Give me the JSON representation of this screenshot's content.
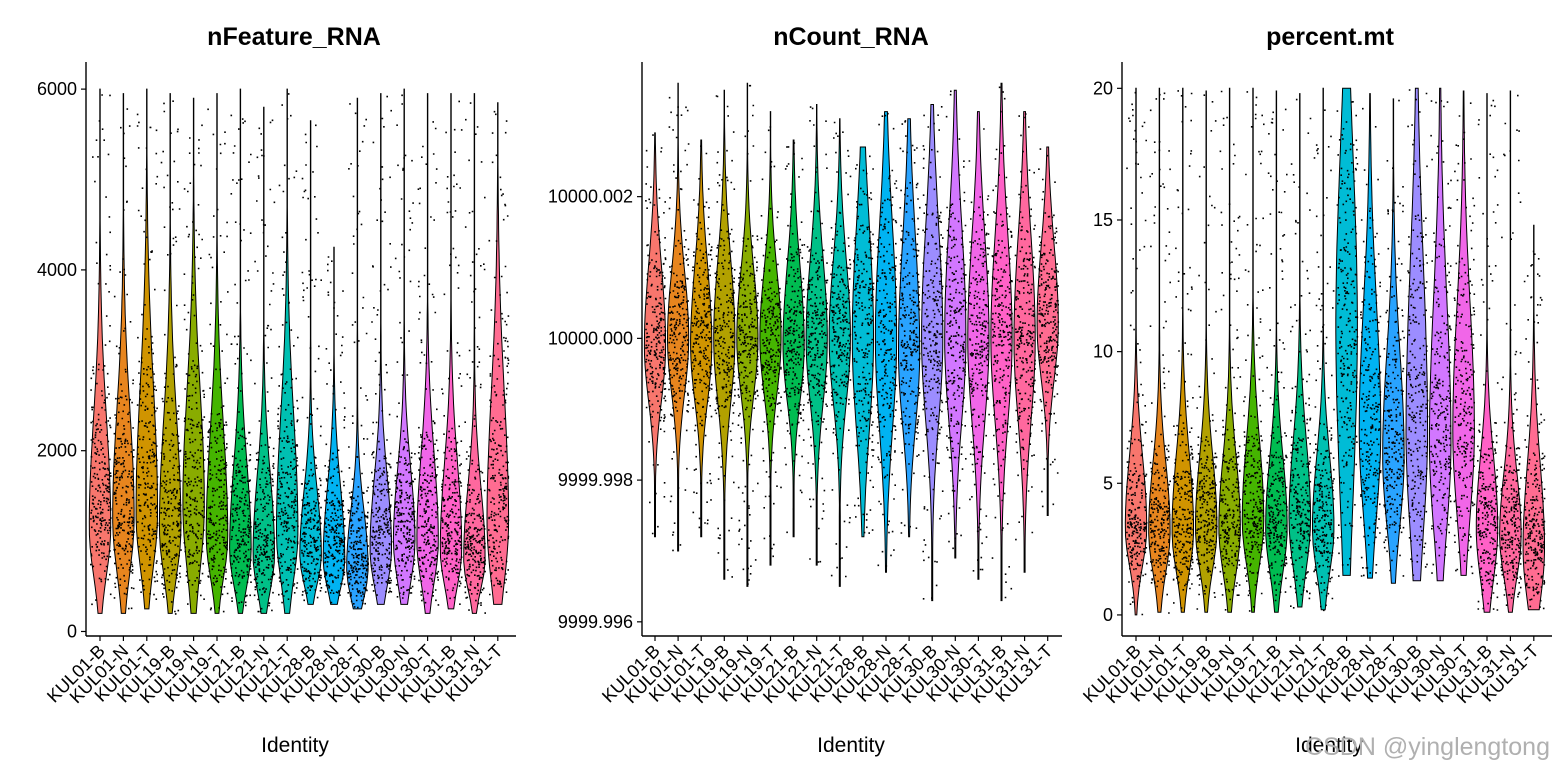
{
  "chart_data": [
    {
      "type": "violin",
      "title": "nFeature_RNA",
      "xlabel": "Identity",
      "ylabel": "",
      "categories": [
        "KUL01-B",
        "KUL01-N",
        "KUL01-T",
        "KUL19-B",
        "KUL19-N",
        "KUL19-T",
        "KUL21-B",
        "KUL21-N",
        "KUL21-T",
        "KUL28-B",
        "KUL28-N",
        "KUL28-T",
        "KUL30-B",
        "KUL30-N",
        "KUL30-T",
        "KUL31-B",
        "KUL31-N",
        "KUL31-T"
      ],
      "colors": [
        "#F8766D",
        "#E7851E",
        "#D09400",
        "#B2A100",
        "#89AC00",
        "#45B500",
        "#00BC51",
        "#00C087",
        "#00C0B2",
        "#00BCD6",
        "#00B3F2",
        "#29A3FF",
        "#9C8DFF",
        "#D277FF",
        "#F166E8",
        "#FF61C7",
        "#FF689E",
        "#FF6C91"
      ],
      "yticks": [
        0,
        2000,
        4000,
        6000
      ],
      "ytick_labels": [
        "0",
        "2000",
        "4000",
        "6000"
      ],
      "ylim": [
        -50,
        6300
      ],
      "min": [
        200,
        200,
        250,
        200,
        200,
        200,
        200,
        200,
        200,
        300,
        300,
        250,
        300,
        300,
        200,
        250,
        200,
        300
      ],
      "max": [
        6000,
        5950,
        6000,
        5950,
        5900,
        5950,
        6000,
        5800,
        6000,
        5650,
        4250,
        5900,
        5950,
        6000,
        5950,
        5950,
        5950,
        5850
      ],
      "median": [
        1150,
        1250,
        1300,
        1150,
        1400,
        1050,
        900,
        850,
        1100,
        850,
        800,
        700,
        900,
        1000,
        1000,
        900,
        800,
        1200
      ],
      "q1": [
        750,
        800,
        850,
        750,
        850,
        700,
        600,
        550,
        700,
        600,
        550,
        450,
        600,
        650,
        650,
        600,
        550,
        700
      ],
      "q3": [
        1900,
        2000,
        2200,
        1900,
        2200,
        1800,
        1500,
        1400,
        1900,
        1300,
        1300,
        1100,
        1400,
        1500,
        1600,
        1500,
        1300,
        2100
      ]
    },
    {
      "type": "violin",
      "title": "nCount_RNA",
      "xlabel": "Identity",
      "ylabel": "",
      "categories": [
        "KUL01-B",
        "KUL01-N",
        "KUL01-T",
        "KUL19-B",
        "KUL19-N",
        "KUL19-T",
        "KUL21-B",
        "KUL21-N",
        "KUL21-T",
        "KUL28-B",
        "KUL28-N",
        "KUL28-T",
        "KUL30-B",
        "KUL30-N",
        "KUL30-T",
        "KUL31-B",
        "KUL31-N",
        "KUL31-T"
      ],
      "colors": [
        "#F8766D",
        "#E7851E",
        "#D09400",
        "#B2A100",
        "#89AC00",
        "#45B500",
        "#00BC51",
        "#00C087",
        "#00C0B2",
        "#00BCD6",
        "#00B3F2",
        "#29A3FF",
        "#9C8DFF",
        "#D277FF",
        "#F166E8",
        "#FF61C7",
        "#FF689E",
        "#FF6C91"
      ],
      "yticks": [
        9999.996,
        9999.998,
        10000.0,
        10000.002
      ],
      "ytick_labels": [
        "9999.996",
        "9999.998",
        "10000.000",
        "10000.002"
      ],
      "ylim": [
        9999.9958,
        10000.0039
      ],
      "min": [
        9999.9972,
        9999.997,
        9999.9972,
        9999.9966,
        9999.9965,
        9999.9968,
        9999.9972,
        9999.9968,
        9999.9965,
        9999.9972,
        9999.9967,
        9999.9972,
        9999.9963,
        9999.9969,
        9999.9966,
        9999.9963,
        9999.9967,
        9999.9975
      ],
      "max": [
        10000.0029,
        10000.0036,
        10000.0028,
        10000.0035,
        10000.0036,
        10000.0032,
        10000.0028,
        10000.0033,
        10000.0031,
        10000.0027,
        10000.0032,
        10000.0031,
        10000.0033,
        10000.0035,
        10000.0032,
        10000.0036,
        10000.0032,
        10000.0027
      ],
      "median": [
        9999.9999,
        10000.0,
        9999.9999,
        10000.0,
        10000.0,
        10000.0,
        9999.9999,
        10000.0,
        10000.0,
        10000.0,
        10000.0,
        9999.9998,
        10000.0,
        10000.0,
        10000.0,
        10000.0,
        10000.0,
        10000.0002
      ],
      "q1": [
        9999.9993,
        9999.9994,
        9999.9993,
        9999.9993,
        9999.9994,
        9999.9994,
        9999.9993,
        9999.9993,
        9999.9993,
        9999.999,
        9999.999,
        9999.999,
        9999.9991,
        9999.9991,
        9999.9991,
        9999.9991,
        9999.9991,
        9999.9996
      ],
      "q3": [
        10000.0006,
        10000.0006,
        10000.0006,
        10000.0007,
        10000.0006,
        10000.0006,
        10000.0006,
        10000.0007,
        10000.0007,
        10000.001,
        10000.001,
        10000.0008,
        10000.001,
        10000.001,
        10000.0009,
        10000.0009,
        10000.0009,
        10000.0009
      ]
    },
    {
      "type": "violin",
      "title": "percent.mt",
      "xlabel": "Identity",
      "ylabel": "",
      "categories": [
        "KUL01-B",
        "KUL01-N",
        "KUL01-T",
        "KUL19-B",
        "KUL19-N",
        "KUL19-T",
        "KUL21-B",
        "KUL21-N",
        "KUL21-T",
        "KUL28-B",
        "KUL28-N",
        "KUL28-T",
        "KUL30-B",
        "KUL30-N",
        "KUL30-T",
        "KUL31-B",
        "KUL31-N",
        "KUL31-T"
      ],
      "colors": [
        "#F8766D",
        "#E7851E",
        "#D09400",
        "#B2A100",
        "#89AC00",
        "#45B500",
        "#00BC51",
        "#00C087",
        "#00C0B2",
        "#00BCD6",
        "#00B3F2",
        "#29A3FF",
        "#9C8DFF",
        "#D277FF",
        "#F166E8",
        "#FF61C7",
        "#FF689E",
        "#FF6C91"
      ],
      "yticks": [
        0,
        5,
        10,
        15,
        20
      ],
      "ytick_labels": [
        "0",
        "5",
        "10",
        "15",
        "20"
      ],
      "ylim": [
        -0.8,
        21
      ],
      "min": [
        0,
        0.1,
        0.1,
        0.1,
        0.1,
        0.1,
        0.1,
        0.3,
        0.2,
        1.5,
        1.4,
        1.2,
        1.3,
        1.3,
        1.5,
        0.1,
        0.1,
        0.2
      ],
      "max": [
        20,
        20,
        20,
        19.9,
        20,
        20,
        19.9,
        19.8,
        20,
        20,
        19.8,
        19.6,
        20,
        20,
        19.9,
        19.8,
        19.9,
        14.8
      ],
      "median": [
        3.3,
        3.2,
        3.2,
        3.3,
        3.3,
        3.6,
        3.3,
        3.6,
        3.3,
        11,
        7,
        6,
        7,
        6.5,
        7,
        3.3,
        3,
        2.5
      ],
      "q1": [
        2.2,
        2.0,
        2.0,
        2.1,
        2.0,
        2.3,
        2.0,
        2.2,
        2.0,
        6,
        4.5,
        4,
        4,
        4,
        4.5,
        1.8,
        1.8,
        1.0
      ],
      "q3": [
        5.0,
        4.8,
        5.0,
        5.0,
        5.0,
        5.5,
        5.0,
        5.5,
        5.0,
        15,
        10,
        8.5,
        11,
        10,
        10,
        5.0,
        4.5,
        4.5
      ]
    }
  ],
  "watermark": "CSDN @yinglengtong"
}
